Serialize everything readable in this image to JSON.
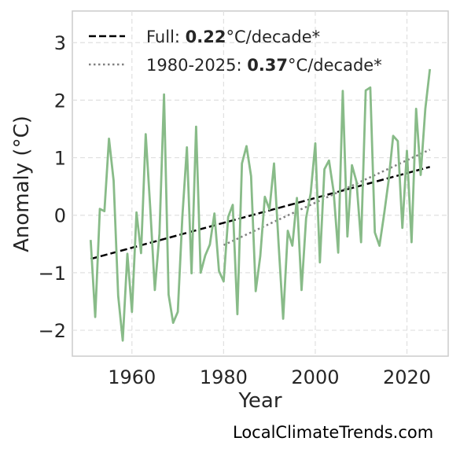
{
  "chart_data": {
    "type": "line",
    "xlabel": "Year",
    "ylabel": "Anomaly (°C)",
    "xlim": [
      1947,
      2029
    ],
    "ylim": [
      -2.45,
      3.55
    ],
    "x_ticks": [
      1960,
      1980,
      2000,
      2020
    ],
    "y_ticks": [
      -2,
      -1,
      0,
      1,
      2,
      3
    ],
    "grid": true,
    "legend_position": "top-left",
    "colors": {
      "series": "#88bb88",
      "full_trend": "#000000",
      "recent_trend": "#808080",
      "grid": "#e0e0e0",
      "frame": "#cccccc"
    },
    "series": [
      {
        "x": [
          1951,
          1952,
          1953,
          1954,
          1955,
          1956,
          1957,
          1958,
          1959,
          1960,
          1961,
          1962,
          1963,
          1964,
          1965,
          1966,
          1967,
          1968,
          1969,
          1970,
          1971,
          1972,
          1973,
          1974,
          1975,
          1976,
          1977,
          1978,
          1979,
          1980,
          1981,
          1982,
          1983,
          1984,
          1985,
          1986,
          1987,
          1988,
          1989,
          1990,
          1991,
          1992,
          1993,
          1994,
          1995,
          1996,
          1997,
          1998,
          1999,
          2000,
          2001,
          2002,
          2003,
          2004,
          2005,
          2006,
          2007,
          2008,
          2009,
          2010,
          2011,
          2012,
          2013,
          2014,
          2015,
          2016,
          2017,
          2018,
          2019,
          2020,
          2021,
          2022,
          2023,
          2024,
          2025
        ],
        "values": [
          -0.43,
          -1.77,
          0.11,
          0.07,
          1.33,
          0.6,
          -1.4,
          -2.18,
          -0.67,
          -1.68,
          0.05,
          -0.66,
          1.41,
          0.12,
          -1.3,
          -0.32,
          2.1,
          -1.38,
          -1.87,
          -1.68,
          -0.03,
          1.18,
          -1.01,
          1.54,
          -1.0,
          -0.7,
          -0.51,
          0.03,
          -0.97,
          -1.15,
          -0.03,
          0.18,
          -1.72,
          0.9,
          1.2,
          0.68,
          -1.32,
          -0.71,
          0.32,
          0.1,
          0.9,
          -0.5,
          -1.8,
          -0.27,
          -0.53,
          0.3,
          -1.3,
          -0.05,
          0.38,
          1.25,
          -0.82,
          0.8,
          0.95,
          0.41,
          -0.65,
          2.16,
          -0.37,
          0.87,
          0.58,
          -0.47,
          2.17,
          2.22,
          -0.3,
          -0.53,
          0.01,
          0.6,
          1.38,
          1.29,
          -0.22,
          1.12,
          -0.47,
          1.85,
          0.7,
          1.85,
          2.54
        ]
      }
    ],
    "trends": [
      {
        "style": "dashed",
        "x": [
          1951,
          2025
        ],
        "y": [
          -0.76,
          0.84
        ]
      },
      {
        "style": "dotted",
        "x": [
          1980,
          2025
        ],
        "y": [
          -0.52,
          1.14
        ]
      }
    ],
    "legend": [
      {
        "prefix": "Full: ",
        "value": "0.22",
        "suffix": "°C/decade*"
      },
      {
        "prefix": "1980-2025: ",
        "value": "0.37",
        "suffix": "°C/decade*"
      }
    ],
    "credit": "LocalClimateTrends.com"
  }
}
